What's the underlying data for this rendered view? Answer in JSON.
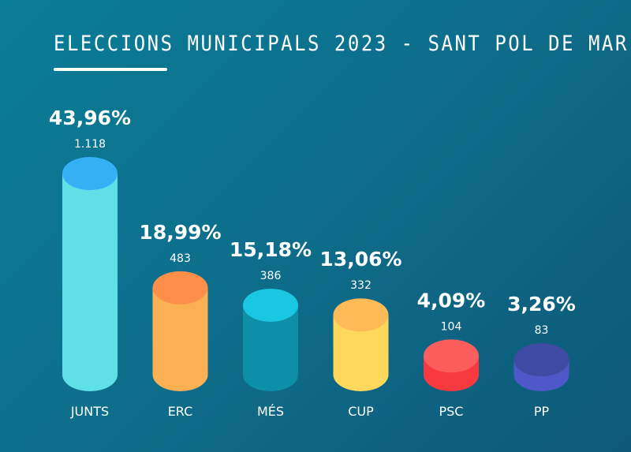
{
  "title": "ELECCIONS MUNICIPALS 2023 - SANT POL DE MAR",
  "chart_data": {
    "type": "bar",
    "title": "ELECCIONS MUNICIPALS 2023 - SANT POL DE MAR",
    "categories": [
      "JUNTS",
      "ERC",
      "MÉS",
      "CUP",
      "PSC",
      "PP"
    ],
    "values": [
      43.96,
      18.99,
      15.18,
      13.06,
      4.09,
      3.26
    ],
    "percent_labels": [
      "43,96%",
      "18,99%",
      "15,18%",
      "13,06%",
      "4,09%",
      "3,26%"
    ],
    "votes": [
      1118,
      483,
      386,
      332,
      104,
      83
    ],
    "vote_labels": [
      "1.118",
      "483",
      "386",
      "332",
      "104",
      "83"
    ],
    "colors": {
      "body": [
        "#5fe0e6",
        "#fbb054",
        "#0e8fa8",
        "#fdd85a",
        "#f8393e",
        "#4f58c8"
      ],
      "top": [
        "#35b0f4",
        "#fd8f4b",
        "#1ac7e2",
        "#fdba56",
        "#fc5e5e",
        "#3f4aa3"
      ]
    },
    "style": "3d-cylinder",
    "grid": false,
    "legend": "none"
  }
}
